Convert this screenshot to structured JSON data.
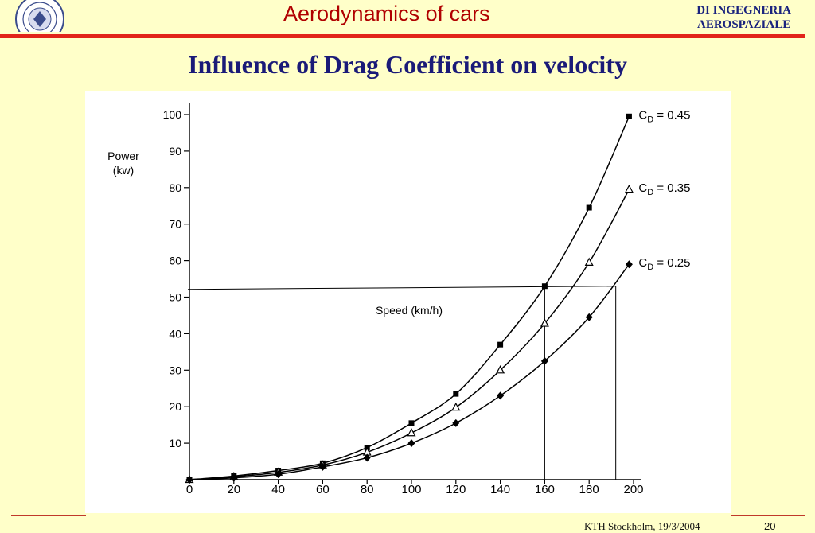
{
  "header": {
    "title": "Aerodynamics of cars",
    "dept_line1": "DI INGEGNERIA",
    "dept_line2": "AEROSPAZIALE",
    "accent_color": "#e2241a"
  },
  "slide_title": "Influence of Drag Coefficient on velocity",
  "footer": {
    "location_date": "KTH Stockholm, 19/3/2004",
    "page_number": "20"
  },
  "chart_data": {
    "type": "line",
    "title": "",
    "ylabel_line1": "Power",
    "ylabel_line2": "(kw)",
    "annotation": "Speed (km/h)",
    "x_ticks": [
      0,
      20,
      40,
      60,
      80,
      100,
      120,
      140,
      160,
      180,
      200
    ],
    "y_ticks": [
      10,
      20,
      30,
      40,
      50,
      60,
      70,
      80,
      90,
      100
    ],
    "xlim": [
      0,
      200
    ],
    "ylim": [
      0,
      100
    ],
    "grid": false,
    "legend": "labels at series ends",
    "series": [
      {
        "label_prefix": "C",
        "label_sub": "D",
        "label_suffix": " = 0.45",
        "marker": "square",
        "x": [
          0,
          20,
          40,
          60,
          80,
          100,
          120,
          140,
          160,
          180,
          198
        ],
        "y": [
          0,
          1,
          2.5,
          4.5,
          8.8,
          15.5,
          23.5,
          37,
          53,
          74.5,
          99.5
        ]
      },
      {
        "label_prefix": "C",
        "label_sub": "D",
        "label_suffix": " = 0.35",
        "marker": "triangle",
        "x": [
          0,
          20,
          40,
          60,
          80,
          100,
          120,
          140,
          160,
          180,
          198
        ],
        "y": [
          0,
          0.8,
          2,
          4,
          7.5,
          12.8,
          19.8,
          30,
          42.8,
          59.5,
          79.5
        ]
      },
      {
        "label_prefix": "C",
        "label_sub": "D",
        "label_suffix": " = 0.25",
        "marker": "diamond",
        "x": [
          0,
          20,
          40,
          60,
          80,
          100,
          120,
          140,
          160,
          180,
          198
        ],
        "y": [
          0,
          0.5,
          1.5,
          3.5,
          6,
          10,
          15.5,
          23,
          32.5,
          44.5,
          59
        ]
      }
    ],
    "reference_lines": {
      "power": 53,
      "speeds": [
        160,
        192
      ]
    }
  }
}
